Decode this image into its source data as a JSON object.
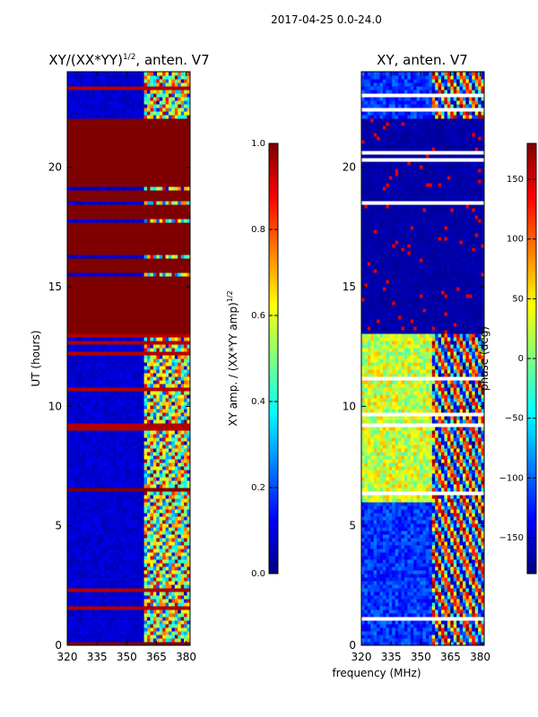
{
  "figure_title": "2017-04-25 0.0-24.0",
  "colors": {
    "jet_stops": [
      "#00007f",
      "#0000ff",
      "#007fff",
      "#00ffff",
      "#7fff7f",
      "#ffff00",
      "#ff7f00",
      "#ff0000",
      "#7f0000"
    ],
    "axis": "#000000",
    "background": "#ffffff"
  },
  "chart_data": [
    {
      "type": "heatmap",
      "panel": "left",
      "title_main": "XY/(XX*YY)",
      "title_sup": "1/2",
      "title_tail": ", anten. V7",
      "xlabel": "",
      "ylabel": "UT (hours)",
      "xlim": [
        320,
        382
      ],
      "ylim": [
        0,
        24
      ],
      "xticks": [
        "320",
        "335",
        "350",
        "365",
        "380"
      ],
      "xtick_values": [
        320,
        335,
        350,
        365,
        380
      ],
      "yticks": [
        "0",
        "5",
        "10",
        "15",
        "20"
      ],
      "ytick_values": [
        0,
        5,
        10,
        15,
        20
      ],
      "saturated_bands_hours": [
        [
          13.0,
          15.5
        ],
        [
          15.6,
          16.2
        ],
        [
          16.3,
          17.7
        ],
        [
          17.8,
          18.5
        ],
        [
          18.6,
          19.0
        ],
        [
          19.2,
          22.1
        ],
        [
          6.4,
          6.6
        ],
        [
          0.0,
          0.1
        ]
      ],
      "active_freq_range_mhz": [
        359,
        382
      ],
      "colorbar": {
        "label_main": "XY amp. / (XX*YY amp)",
        "label_sup": "1/2",
        "range": [
          0.0,
          1.0
        ],
        "ticks": [
          "0.0",
          "0.2",
          "0.4",
          "0.6",
          "0.8",
          "1.0"
        ],
        "tick_values": [
          0.0,
          0.2,
          0.4,
          0.6,
          0.8,
          1.0
        ]
      }
    },
    {
      "type": "heatmap",
      "panel": "right",
      "title": "XY, anten. V7",
      "xlabel": "frequency (MHz)",
      "ylabel": "",
      "xlim": [
        320,
        382
      ],
      "ylim": [
        0,
        24
      ],
      "xticks": [
        "320",
        "335",
        "350",
        "365",
        "380"
      ],
      "xtick_values": [
        320,
        335,
        350,
        365,
        380
      ],
      "yticks": [
        "0",
        "5",
        "10",
        "15",
        "20"
      ],
      "ytick_values": [
        0,
        5,
        10,
        15,
        20
      ],
      "active_hours": [
        [
          0.0,
          13.0
        ],
        [
          22.0,
          24.0
        ]
      ],
      "colorbar": {
        "label": "phase (deg)",
        "range": [
          -180,
          180
        ],
        "ticks": [
          "−150",
          "−100",
          "−50",
          "0",
          "50",
          "100",
          "150"
        ],
        "tick_values": [
          -150,
          -100,
          -50,
          0,
          50,
          100,
          150
        ]
      }
    }
  ]
}
